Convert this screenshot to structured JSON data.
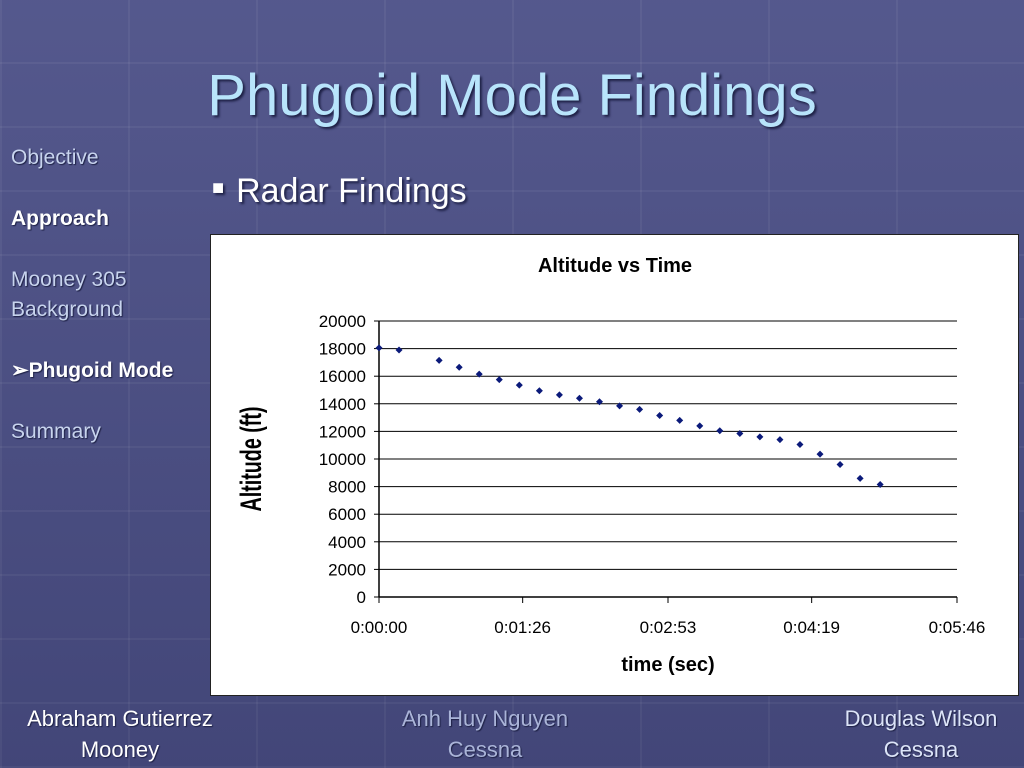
{
  "slide": {
    "title": "Phugoid Mode Findings"
  },
  "sidebar": {
    "items": [
      {
        "label": "Objective",
        "active": false
      },
      {
        "label": "Approach",
        "active": false
      },
      {
        "label": "Mooney 305 Background",
        "active": false
      },
      {
        "label": "Phugoid Mode",
        "arrow": "➢",
        "active": true
      },
      {
        "label": "Summary",
        "active": false
      }
    ]
  },
  "content": {
    "bullet_icon": "square-bullet-icon",
    "bullet": "Radar Findings"
  },
  "chart_data": {
    "type": "scatter",
    "title": "Altitude vs Time",
    "xlabel": "time (sec)",
    "ylabel": "Altitude (ft)",
    "xlim": [
      0,
      346
    ],
    "ylim": [
      0,
      20000
    ],
    "xticks": [
      0,
      86,
      173,
      259,
      346
    ],
    "xtick_labels": [
      "0:00:00",
      "0:01:26",
      "0:02:53",
      "0:04:19",
      "0:05:46"
    ],
    "yticks": [
      0,
      2000,
      4000,
      6000,
      8000,
      10000,
      12000,
      14000,
      16000,
      18000,
      20000
    ],
    "grid": true,
    "legend": false,
    "marker_color": "#0b1a7a",
    "series": [
      {
        "points": [
          [
            0,
            18050
          ],
          [
            12,
            17900
          ],
          [
            36,
            17150
          ],
          [
            48,
            16650
          ],
          [
            60,
            16150
          ],
          [
            72,
            15750
          ],
          [
            84,
            15350
          ],
          [
            96,
            14950
          ],
          [
            108,
            14650
          ],
          [
            120,
            14400
          ],
          [
            132,
            14150
          ],
          [
            144,
            13850
          ],
          [
            156,
            13600
          ],
          [
            168,
            13150
          ],
          [
            180,
            12800
          ],
          [
            192,
            12400
          ],
          [
            204,
            12050
          ],
          [
            216,
            11850
          ],
          [
            228,
            11600
          ],
          [
            240,
            11400
          ],
          [
            252,
            11050
          ],
          [
            264,
            10350
          ],
          [
            276,
            9600
          ],
          [
            288,
            8600
          ],
          [
            300,
            8150
          ]
        ]
      }
    ]
  },
  "footer": {
    "left": {
      "name": "Abraham Gutierrez",
      "aircraft": "Mooney"
    },
    "center": {
      "name": "Anh Huy Nguyen",
      "aircraft": "Cessna"
    },
    "right": {
      "name": "Douglas Wilson",
      "aircraft": "Cessna"
    }
  }
}
